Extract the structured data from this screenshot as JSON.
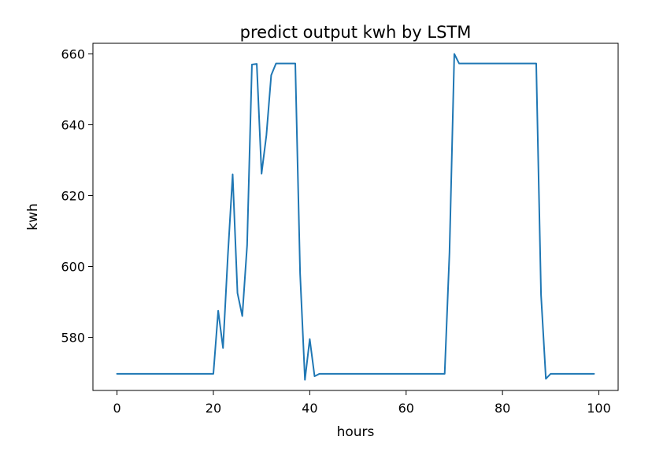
{
  "chart_data": {
    "type": "line",
    "title": "predict output kwh by LSTM",
    "xlabel": "hours",
    "ylabel": "kwh",
    "xlim": [
      -5,
      104
    ],
    "ylim": [
      565,
      663
    ],
    "grid": false,
    "xticks": [
      0,
      20,
      40,
      60,
      80,
      100
    ],
    "yticks": [
      580,
      600,
      620,
      640,
      660
    ],
    "colors": {
      "line": "#1f77b4"
    },
    "series": [
      {
        "x": [
          0,
          1,
          2,
          3,
          4,
          5,
          6,
          7,
          8,
          9,
          10,
          11,
          12,
          13,
          14,
          15,
          16,
          17,
          18,
          19,
          20,
          21,
          22,
          23,
          24,
          25,
          26,
          27,
          28,
          29,
          30,
          31,
          32,
          33,
          34,
          35,
          36,
          37,
          38,
          39,
          40,
          41,
          42,
          43,
          44,
          45,
          46,
          47,
          48,
          49,
          50,
          51,
          52,
          53,
          54,
          55,
          56,
          57,
          58,
          59,
          60,
          61,
          62,
          63,
          64,
          65,
          66,
          67,
          68,
          69,
          70,
          71,
          72,
          73,
          74,
          75,
          76,
          77,
          78,
          79,
          80,
          81,
          82,
          83,
          84,
          85,
          86,
          87,
          88,
          89,
          90,
          91,
          92,
          93,
          94,
          95,
          96,
          97,
          98,
          99
        ],
        "values": [
          569.7,
          569.7,
          569.7,
          569.7,
          569.7,
          569.7,
          569.7,
          569.7,
          569.7,
          569.7,
          569.7,
          569.7,
          569.7,
          569.7,
          569.7,
          569.7,
          569.7,
          569.7,
          569.7,
          569.7,
          569.7,
          587.5,
          577.0,
          603.0,
          626.0,
          592.5,
          586.0,
          606.0,
          657.0,
          657.2,
          626.2,
          637.0,
          654.0,
          657.3,
          657.3,
          657.3,
          657.3,
          657.3,
          598.0,
          568.0,
          579.5,
          569.0,
          569.7,
          569.7,
          569.7,
          569.7,
          569.7,
          569.7,
          569.7,
          569.7,
          569.7,
          569.7,
          569.7,
          569.7,
          569.7,
          569.7,
          569.7,
          569.7,
          569.7,
          569.7,
          569.7,
          569.7,
          569.7,
          569.7,
          569.7,
          569.7,
          569.7,
          569.7,
          569.7,
          604.0,
          660.0,
          657.3,
          657.3,
          657.3,
          657.3,
          657.3,
          657.3,
          657.3,
          657.3,
          657.3,
          657.3,
          657.3,
          657.3,
          657.3,
          657.3,
          657.3,
          657.3,
          657.3,
          592.0,
          568.3,
          569.7,
          569.7,
          569.7,
          569.7,
          569.7,
          569.7,
          569.7,
          569.7,
          569.7,
          569.7
        ]
      }
    ]
  }
}
